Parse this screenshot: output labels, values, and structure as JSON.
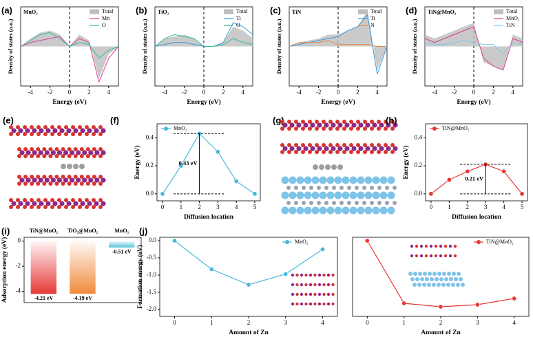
{
  "images": [
    {
      "label": "(e)"
    },
    {
      "label": "(g)"
    }
  ],
  "chart_data": [
    {
      "type": "dos",
      "panel_label": "(a)",
      "title": "MnO₂",
      "xlabel": "Energy (eV)",
      "ylabel": "Density of states (a.u.)",
      "x": [
        -5,
        -4,
        -3,
        -2,
        -1,
        0,
        1,
        2,
        3,
        4,
        5
      ],
      "xlim": [
        -5,
        5
      ],
      "xticks": [
        -4,
        -2,
        0,
        2,
        4
      ],
      "ylim": [
        -1,
        1
      ],
      "legend": "top-right",
      "series": [
        {
          "name": "Total",
          "color": "#bdbdbd",
          "area": true,
          "values": [
            0,
            0.2,
            0.35,
            0.4,
            0.3,
            0,
            0.3,
            0.15,
            -0.8,
            -0.2,
            0
          ]
        },
        {
          "name": "Mn",
          "color": "#e0409a",
          "values": [
            0,
            0.1,
            0.15,
            0.2,
            0.25,
            0,
            0.2,
            0.1,
            -0.9,
            -0.3,
            0
          ]
        },
        {
          "name": "O",
          "color": "#2bbf9a",
          "values": [
            0,
            0.15,
            0.3,
            0.35,
            0.2,
            0,
            0.1,
            0.05,
            -0.3,
            -0.1,
            0
          ]
        }
      ]
    },
    {
      "type": "dos",
      "panel_label": "(b)",
      "title": "TiO₂",
      "xlabel": "Energy (eV)",
      "ylabel": "Density of states (a.u.)",
      "x": [
        -5,
        -4,
        -3,
        -2,
        -1,
        0,
        1,
        2,
        3,
        4,
        5
      ],
      "xlim": [
        -5,
        5
      ],
      "xticks": [
        -4,
        -2,
        0,
        2,
        4
      ],
      "ylim": [
        -1,
        1
      ],
      "legend": "top-right",
      "series": [
        {
          "name": "Total",
          "color": "#bdbdbd",
          "area": true,
          "values": [
            0,
            0.2,
            0.25,
            0.3,
            0.2,
            0,
            0,
            0.1,
            0.5,
            0.4,
            0.2
          ]
        },
        {
          "name": "Ti",
          "color": "#3a9ad9",
          "values": [
            0,
            0.05,
            0.1,
            0.1,
            0.05,
            0,
            0,
            0.1,
            0.6,
            0.5,
            0.3
          ]
        },
        {
          "name": "O",
          "color": "#2bbf9a",
          "values": [
            0,
            0.2,
            0.3,
            0.25,
            0.2,
            0,
            0,
            0.05,
            0.2,
            0.1,
            0.05
          ]
        }
      ]
    },
    {
      "type": "dos",
      "panel_label": "(c)",
      "title": "TiN",
      "xlabel": "Energy (eV)",
      "ylabel": "Density of states (a.u.)",
      "x": [
        -5,
        -4,
        -3,
        -2,
        -1,
        0,
        1,
        2,
        3,
        4,
        5
      ],
      "xlim": [
        -5,
        5
      ],
      "xticks": [
        -4,
        -2,
        0,
        2,
        4
      ],
      "ylim": [
        -1,
        1
      ],
      "legend": "top-right",
      "series": [
        {
          "name": "Total",
          "color": "#bdbdbd",
          "area": true,
          "values": [
            0,
            0.1,
            0.15,
            0.2,
            0.3,
            0.3,
            0.4,
            0.5,
            0.9,
            -0.6,
            0
          ]
        },
        {
          "name": "Ti",
          "color": "#3a9ad9",
          "values": [
            0,
            0.05,
            0.1,
            0.15,
            0.2,
            0.25,
            0.4,
            0.5,
            0.8,
            -0.7,
            0
          ]
        },
        {
          "name": "N",
          "color": "#e8884a",
          "values": [
            0,
            0.1,
            0.1,
            0.1,
            0.15,
            0.05,
            0.05,
            0.05,
            0.05,
            0,
            0
          ]
        }
      ]
    },
    {
      "type": "dos",
      "panel_label": "(d)",
      "title": "TiN@MnO₂",
      "xlabel": "Energy (eV)",
      "ylabel": "Density of states (a.u.)",
      "x": [
        -5,
        -4,
        -3,
        -2,
        -1,
        0,
        1,
        2,
        3,
        4,
        5
      ],
      "xlim": [
        -5,
        5
      ],
      "xticks": [
        -4,
        -2,
        0,
        2,
        4
      ],
      "ylim": [
        -1,
        1
      ],
      "legend": "top-right",
      "series": [
        {
          "name": "Total",
          "color": "#bdbdbd",
          "area": true,
          "values": [
            0.3,
            0.2,
            0.3,
            0.4,
            0.5,
            0.6,
            -0.4,
            -0.5,
            -0.6,
            0.3,
            0.2
          ]
        },
        {
          "name": "MnO₂",
          "color": "#d63a8f",
          "values": [
            0.2,
            0.1,
            0.2,
            0.3,
            0.4,
            0.5,
            -0.3,
            -0.5,
            -0.6,
            0.2,
            0.1
          ]
        },
        {
          "name": "TiN",
          "color": "#7fc8e8",
          "values": [
            0.1,
            0.05,
            0.05,
            0.1,
            0.15,
            0.1,
            0.05,
            0.05,
            -0.2,
            0.1,
            0.05
          ]
        }
      ]
    },
    {
      "type": "line",
      "panel_label": "(f)",
      "xlabel": "Diffusion location",
      "ylabel": "Energy (eV)",
      "annotation": "0.43 eV",
      "x": [
        0,
        1,
        2,
        3,
        4,
        5
      ],
      "xlim": [
        -0.3,
        5.3
      ],
      "xticks": [
        0,
        1,
        2,
        3,
        4,
        5
      ],
      "ylim": [
        -0.05,
        0.5
      ],
      "yticks": [
        {
          "value": 0,
          "label": "0.0"
        },
        0.2,
        0.4
      ],
      "legend": "top-left",
      "series": [
        {
          "name": "MnO₂",
          "color": "#45b8dc",
          "values": [
            0,
            0.2,
            0.43,
            0.3,
            0.09,
            0
          ]
        }
      ]
    },
    {
      "type": "line",
      "panel_label": "(h)",
      "xlabel": "Diffusion location",
      "ylabel": "Energy (eV)",
      "annotation": "0.21 eV",
      "x": [
        0,
        1,
        2,
        3,
        4,
        5
      ],
      "xlim": [
        -0.3,
        5.3
      ],
      "xticks": [
        0,
        1,
        2,
        3,
        4,
        5
      ],
      "ylim": [
        -0.05,
        0.5
      ],
      "yticks": [
        {
          "value": 0,
          "label": "0.0"
        },
        0.2,
        0.4
      ],
      "legend": "top-left",
      "series": [
        {
          "name": "TiN@MnO₂",
          "color": "#e53935",
          "values": [
            0,
            0.1,
            0.16,
            0.21,
            0.16,
            0
          ]
        }
      ]
    },
    {
      "type": "bar",
      "panel_label": "(i)",
      "ylabel": "Adsorption energy (eV)",
      "categories": [
        "TiN@MnO₂",
        "TiO₂@MnO₂",
        "MnO₂"
      ],
      "values": [
        -4.21,
        -4.19,
        -0.51
      ],
      "value_labels": [
        "-4.21 eV",
        "-4.19 eV",
        "-0.51 eV"
      ],
      "colors": [
        "#e53935",
        "#f08a3c",
        "#4fc3d9"
      ],
      "ylim": [
        -4.9,
        0.3
      ],
      "yticks": [
        0,
        -2,
        -4
      ]
    },
    {
      "type": "line",
      "panel_label": "(j)",
      "xlabel": "Amount of Zn",
      "ylabel": "Formation energy (eV)",
      "x": [
        0,
        1,
        2,
        3,
        4
      ],
      "xlim": [
        -0.4,
        4.4
      ],
      "xticks": [
        0,
        1,
        2,
        3,
        4
      ],
      "ylim": [
        -2.2,
        0.1
      ],
      "yticks": [
        {
          "value": 0,
          "label": "0.0"
        },
        -0.5,
        {
          "value": -1,
          "label": "-1.0"
        },
        -1.5,
        {
          "value": -2,
          "label": "-2.0"
        }
      ],
      "legend": "top-right",
      "series": [
        {
          "name": "MnO₂",
          "color": "#45b8dc",
          "values": [
            0,
            -0.83,
            -1.28,
            -0.97,
            -0.25
          ]
        }
      ]
    },
    {
      "type": "line",
      "xlabel": "Amount of Zn",
      "x": [
        0,
        1,
        2,
        3,
        4
      ],
      "xlim": [
        -0.4,
        4.4
      ],
      "xticks": [
        0,
        1,
        2,
        3,
        4
      ],
      "ylim": [
        -2.2,
        0.1
      ],
      "legend": "top-right",
      "series": [
        {
          "name": "TiN@MnO₂",
          "color": "#e53935",
          "values": [
            0,
            -1.82,
            -1.92,
            -1.86,
            -1.68
          ]
        }
      ]
    }
  ]
}
